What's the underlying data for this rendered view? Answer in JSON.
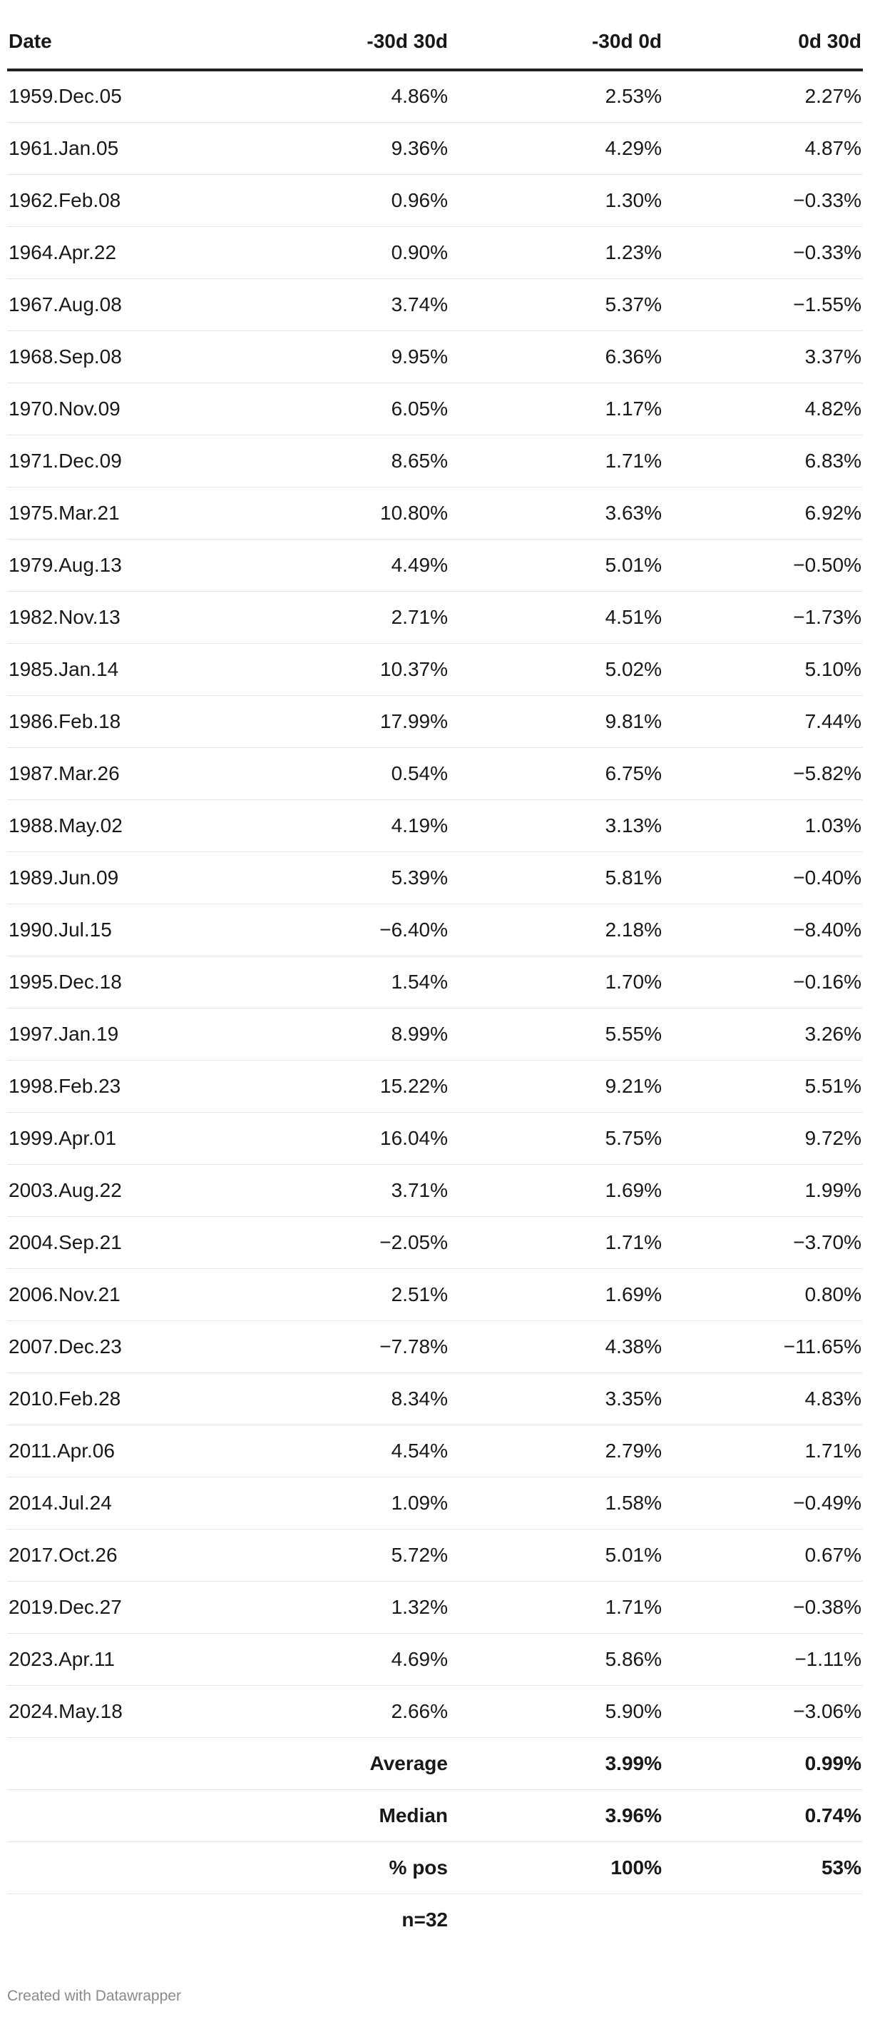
{
  "chart_data": {
    "type": "table",
    "columns": [
      "Date",
      "-30d 30d",
      "-30d 0d",
      "0d 30d"
    ],
    "rows": [
      [
        "1959.Dec.05",
        "4.86%",
        "2.53%",
        "2.27%"
      ],
      [
        "1961.Jan.05",
        "9.36%",
        "4.29%",
        "4.87%"
      ],
      [
        "1962.Feb.08",
        "0.96%",
        "1.30%",
        "−0.33%"
      ],
      [
        "1964.Apr.22",
        "0.90%",
        "1.23%",
        "−0.33%"
      ],
      [
        "1967.Aug.08",
        "3.74%",
        "5.37%",
        "−1.55%"
      ],
      [
        "1968.Sep.08",
        "9.95%",
        "6.36%",
        "3.37%"
      ],
      [
        "1970.Nov.09",
        "6.05%",
        "1.17%",
        "4.82%"
      ],
      [
        "1971.Dec.09",
        "8.65%",
        "1.71%",
        "6.83%"
      ],
      [
        "1975.Mar.21",
        "10.80%",
        "3.63%",
        "6.92%"
      ],
      [
        "1979.Aug.13",
        "4.49%",
        "5.01%",
        "−0.50%"
      ],
      [
        "1982.Nov.13",
        "2.71%",
        "4.51%",
        "−1.73%"
      ],
      [
        "1985.Jan.14",
        "10.37%",
        "5.02%",
        "5.10%"
      ],
      [
        "1986.Feb.18",
        "17.99%",
        "9.81%",
        "7.44%"
      ],
      [
        "1987.Mar.26",
        "0.54%",
        "6.75%",
        "−5.82%"
      ],
      [
        "1988.May.02",
        "4.19%",
        "3.13%",
        "1.03%"
      ],
      [
        "1989.Jun.09",
        "5.39%",
        "5.81%",
        "−0.40%"
      ],
      [
        "1990.Jul.15",
        "−6.40%",
        "2.18%",
        "−8.40%"
      ],
      [
        "1995.Dec.18",
        "1.54%",
        "1.70%",
        "−0.16%"
      ],
      [
        "1997.Jan.19",
        "8.99%",
        "5.55%",
        "3.26%"
      ],
      [
        "1998.Feb.23",
        "15.22%",
        "9.21%",
        "5.51%"
      ],
      [
        "1999.Apr.01",
        "16.04%",
        "5.75%",
        "9.72%"
      ],
      [
        "2003.Aug.22",
        "3.71%",
        "1.69%",
        "1.99%"
      ],
      [
        "2004.Sep.21",
        "−2.05%",
        "1.71%",
        "−3.70%"
      ],
      [
        "2006.Nov.21",
        "2.51%",
        "1.69%",
        "0.80%"
      ],
      [
        "2007.Dec.23",
        "−7.78%",
        "4.38%",
        "−11.65%"
      ],
      [
        "2010.Feb.28",
        "8.34%",
        "3.35%",
        "4.83%"
      ],
      [
        "2011.Apr.06",
        "4.54%",
        "2.79%",
        "1.71%"
      ],
      [
        "2014.Jul.24",
        "1.09%",
        "1.58%",
        "−0.49%"
      ],
      [
        "2017.Oct.26",
        "5.72%",
        "5.01%",
        "0.67%"
      ],
      [
        "2019.Dec.27",
        "1.32%",
        "1.71%",
        "−0.38%"
      ],
      [
        "2023.Apr.11",
        "4.69%",
        "5.86%",
        "−1.11%"
      ],
      [
        "2024.May.18",
        "2.66%",
        "5.90%",
        "−3.06%"
      ]
    ],
    "summary_rows": [
      [
        "",
        "Average",
        "3.99%",
        "0.99%"
      ],
      [
        "",
        "Median",
        "3.96%",
        "0.74%"
      ],
      [
        "",
        "% pos",
        "100%",
        "53%"
      ],
      [
        "",
        "n=32",
        "",
        ""
      ]
    ]
  },
  "footer": {
    "credit": "Created with Datawrapper"
  }
}
